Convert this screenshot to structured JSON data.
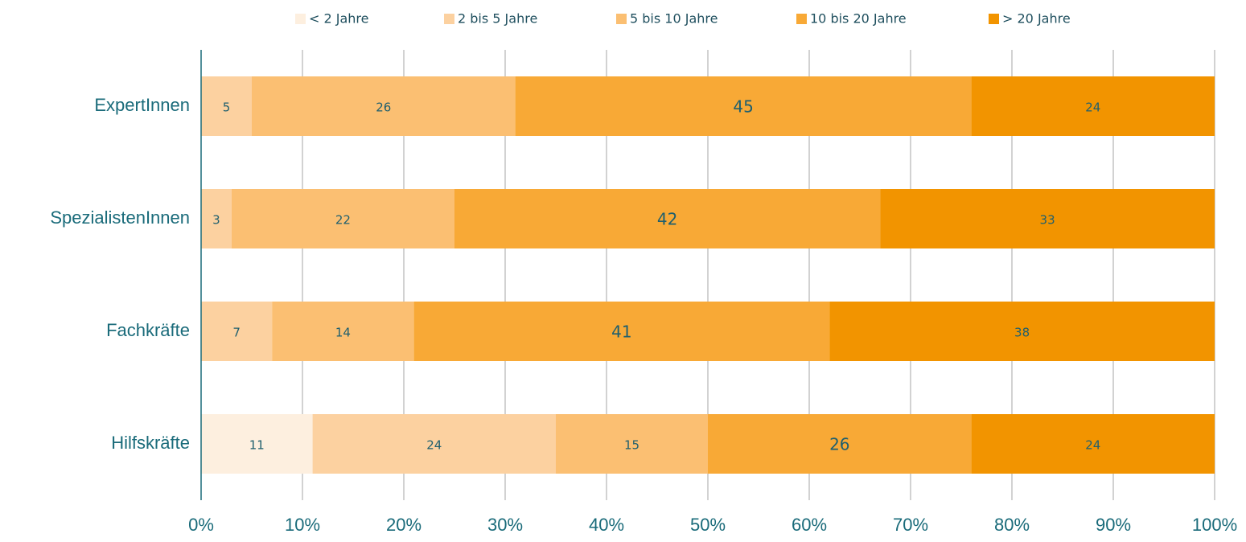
{
  "chart_data": {
    "type": "stacked-barh",
    "categories": [
      "ExpertInnen",
      "SpezialistenInnen",
      "Fachkräfte",
      "Hilfskräfte"
    ],
    "series": [
      {
        "name": "< 2 Jahre",
        "color": "#fdefdf",
        "values": [
          null,
          null,
          null,
          11
        ]
      },
      {
        "name": "2 bis 5 Jahre",
        "color": "#fcd1a0",
        "values": [
          5,
          3,
          7,
          24
        ]
      },
      {
        "name": "5 bis 10 Jahre",
        "color": "#fbbf72",
        "values": [
          26,
          22,
          14,
          15
        ]
      },
      {
        "name": "10 bis 20 Jahre",
        "color": "#f8a936",
        "values": [
          45,
          42,
          41,
          26
        ]
      },
      {
        "name": "> 20 Jahre",
        "color": "#f29400",
        "values": [
          24,
          33,
          38,
          24
        ]
      }
    ],
    "xlim": [
      0,
      100
    ],
    "xticks": [
      {
        "value": 0,
        "label": "0%"
      },
      {
        "value": 10,
        "label": "10%"
      },
      {
        "value": 20,
        "label": "20%"
      },
      {
        "value": 30,
        "label": "30%"
      },
      {
        "value": 40,
        "label": "40%"
      },
      {
        "value": 50,
        "label": "50%"
      },
      {
        "value": 60,
        "label": "60%"
      },
      {
        "value": 70,
        "label": "70%"
      },
      {
        "value": 80,
        "label": "80%"
      },
      {
        "value": 90,
        "label": "90%"
      },
      {
        "value": 100,
        "label": "100%"
      }
    ],
    "grid": true,
    "legend": "top"
  }
}
